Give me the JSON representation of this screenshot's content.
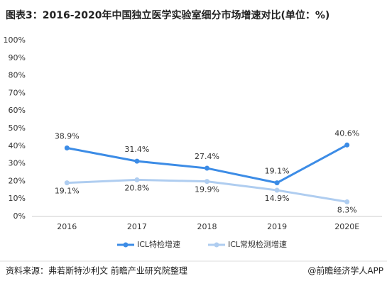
{
  "chart_data": {
    "type": "line",
    "title": "图表3：2016-2020年中国独立医学实验室细分市场增速对比(单位：%)",
    "categories": [
      "2016",
      "2017",
      "2018",
      "2019",
      "2020E"
    ],
    "series": [
      {
        "name": "ICL特检增速",
        "color": "#3c8ce6",
        "values": [
          38.9,
          31.4,
          27.4,
          19.1,
          40.6
        ],
        "value_labels": [
          "38.9%",
          "31.4%",
          "27.4%",
          "19.1%",
          "40.6%"
        ]
      },
      {
        "name": "ICL常规检测增速",
        "color": "#afcdf0",
        "values": [
          19.1,
          20.8,
          19.9,
          14.9,
          8.3
        ],
        "value_labels": [
          "19.1%",
          "20.8%",
          "19.9%",
          "14.9%",
          "8.3%"
        ]
      }
    ],
    "ylim": [
      0,
      100
    ],
    "yticks": [
      {
        "value": 0,
        "label": "0%"
      },
      {
        "value": 10,
        "label": "10%"
      },
      {
        "value": 20,
        "label": "20%"
      },
      {
        "value": 30,
        "label": "30%"
      },
      {
        "value": 40,
        "label": "40%"
      },
      {
        "value": 50,
        "label": "50%"
      },
      {
        "value": 60,
        "label": "60%"
      },
      {
        "value": 70,
        "label": "70%"
      },
      {
        "value": 80,
        "label": "80%"
      },
      {
        "value": 90,
        "label": "90%"
      },
      {
        "value": 100,
        "label": "100%"
      }
    ],
    "grid": false,
    "legend": "bottom",
    "source": "资料来源：弗若斯特沙利文 前瞻产业研究院整理",
    "credit": "@前瞻经济学人APP"
  }
}
